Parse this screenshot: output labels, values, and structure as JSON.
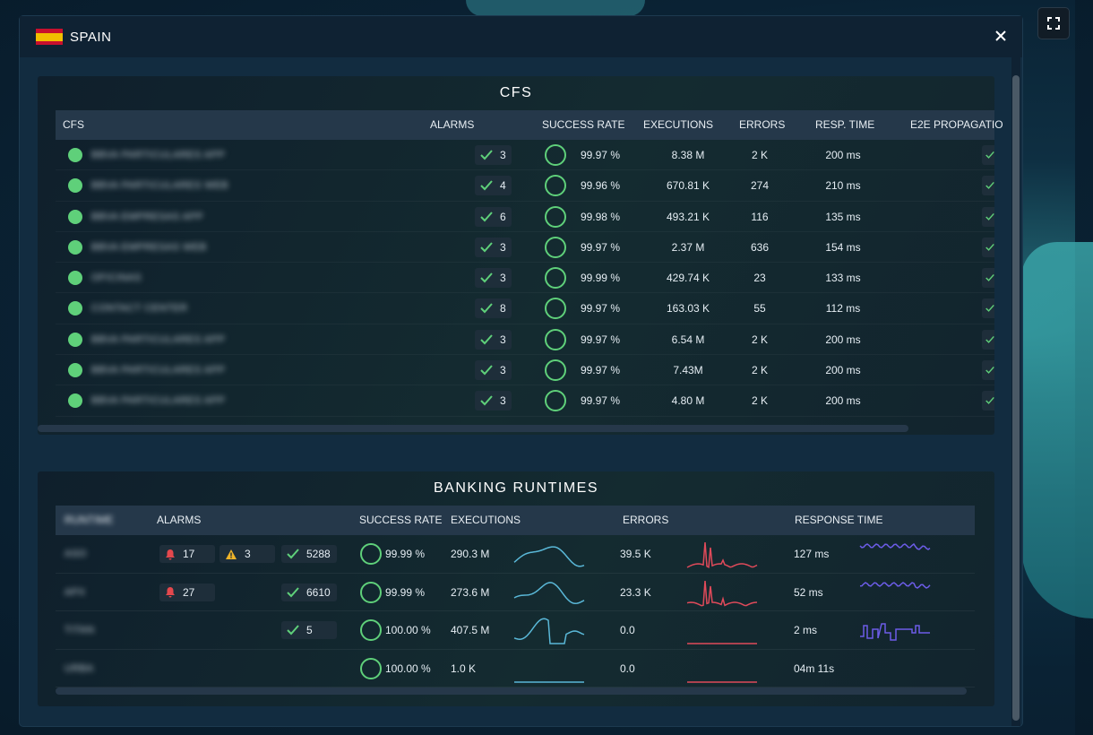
{
  "colors": {
    "ok": "#5fd07a",
    "bell": "#e5484d",
    "warn": "#f0b429",
    "exec_spark": "#5ab8d8",
    "error_spark": "#e04a5a",
    "resp_spark": "#6c5ce7"
  },
  "modal": {
    "title": "SPAIN",
    "flag": "spain-flag"
  },
  "cfs": {
    "title": "CFS",
    "headers": {
      "name": "CFS",
      "alarms": "ALARMS",
      "success": "SUCCESS RATE",
      "executions": "EXECUTIONS",
      "errors": "ERRORS",
      "resp": "RESP. TIME",
      "e2e": "E2E PROPAGATIO"
    },
    "rows": [
      {
        "name": "BBVA PARTICULARES APP",
        "alarms": "3",
        "success": "99.97 %",
        "executions": "8.38 M",
        "errors": "2 K",
        "resp": "200 ms"
      },
      {
        "name": "BBVA PARTICULARES WEB",
        "alarms": "4",
        "success": "99.96 %",
        "executions": "670.81 K",
        "errors": "274",
        "resp": "210 ms"
      },
      {
        "name": "BBVA EMPRESAS APP",
        "alarms": "6",
        "success": "99.98 %",
        "executions": "493.21 K",
        "errors": "116",
        "resp": "135 ms"
      },
      {
        "name": "BBVA EMPRESAS WEB",
        "alarms": "3",
        "success": "99.97 %",
        "executions": "2.37 M",
        "errors": "636",
        "resp": "154 ms"
      },
      {
        "name": "OFICINAS",
        "alarms": "3",
        "success": "99.99 %",
        "executions": "429.74 K",
        "errors": "23",
        "resp": "133 ms"
      },
      {
        "name": "CONTACT CENTER",
        "alarms": "8",
        "success": "99.97 %",
        "executions": "163.03 K",
        "errors": "55",
        "resp": "112 ms"
      },
      {
        "name": "BBVA PARTICULARES APP",
        "alarms": "3",
        "success": "99.97 %",
        "executions": "6.54 M",
        "errors": "2 K",
        "resp": "200 ms"
      },
      {
        "name": "BBVA PARTICULARES APP",
        "alarms": "3",
        "success": "99.97 %",
        "executions": "7.43M",
        "errors": "2 K",
        "resp": "200 ms"
      },
      {
        "name": "BBVA PARTICULARES APP",
        "alarms": "3",
        "success": "99.97 %",
        "executions": "4.80 M",
        "errors": "2 K",
        "resp": "200 ms"
      }
    ]
  },
  "bank": {
    "title": "BANKING RUNTIMES",
    "headers": {
      "name": "RUNTIME",
      "alarms": "ALARMS",
      "success": "SUCCESS RATE",
      "executions": "EXECUTIONS",
      "errors": "ERRORS",
      "resp": "RESPONSE TIME"
    },
    "rows": [
      {
        "name": "ASO",
        "bell": "17",
        "warn": "3",
        "ok": "5288",
        "success": "99.99 %",
        "executions": "290.3 M",
        "errors": "39.5 K",
        "resp": "127 ms"
      },
      {
        "name": "APX",
        "bell": "27",
        "warn": "",
        "ok": "6610",
        "success": "99.99 %",
        "executions": "273.6 M",
        "errors": "23.3 K",
        "resp": "52 ms"
      },
      {
        "name": "TITAN",
        "bell": "",
        "warn": "",
        "ok": "5",
        "success": "100.00 %",
        "executions": "407.5 M",
        "errors": "0.0",
        "resp": "2 ms"
      },
      {
        "name": "URBA",
        "bell": "",
        "warn": "",
        "ok": "",
        "success": "100.00 %",
        "executions": "1.0 K",
        "errors": "0.0",
        "resp": "04m 11s"
      }
    ]
  }
}
